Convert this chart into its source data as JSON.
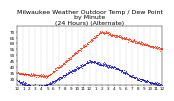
{
  "title": "Milwaukee Weather Outdoor Temp / Dew Point\nby Minute\n(24 Hours) (Alternate)",
  "title_fontsize": 4.5,
  "background_color": "#ffffff",
  "grid_color": "#cccccc",
  "temp_color": "#ff2200",
  "dew_color": "#0000cc",
  "ylim": [
    25,
    75
  ],
  "xlim": [
    0,
    1440
  ],
  "tick_fontsize": 3.0,
  "dot_size": 0.3,
  "x_tick_positions": [
    0,
    60,
    120,
    180,
    240,
    300,
    360,
    420,
    480,
    540,
    600,
    660,
    720,
    780,
    840,
    900,
    960,
    1020,
    1080,
    1140,
    1200,
    1260,
    1320,
    1380,
    1440
  ],
  "x_tick_labels": [
    "12",
    "1",
    "2",
    "3",
    "4",
    "5",
    "6",
    "7",
    "8",
    "9",
    "10",
    "11",
    "12",
    "1",
    "2",
    "3",
    "4",
    "5",
    "6",
    "7",
    "8",
    "9",
    "10",
    "11",
    "12"
  ],
  "y_tick_positions": [
    30,
    35,
    40,
    45,
    50,
    55,
    60,
    65,
    70
  ],
  "y_tick_labels": [
    "30",
    "35",
    "40",
    "45",
    "50",
    "55",
    "60",
    "65",
    "70"
  ]
}
